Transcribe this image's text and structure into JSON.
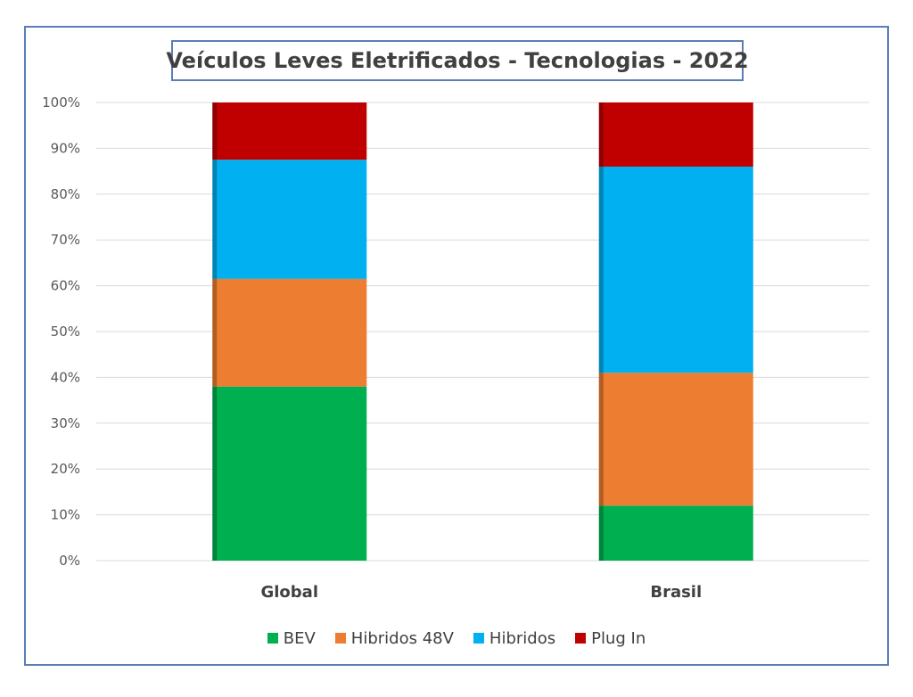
{
  "chart_data": {
    "type": "bar",
    "stacked": true,
    "normalized_percent": true,
    "title": "Veículos Leves Eletrificados - Tecnologias - 2022",
    "categories": [
      "Global",
      "Brasil"
    ],
    "series": [
      {
        "name": "BEV",
        "values": [
          38,
          12
        ],
        "color": "#00b050"
      },
      {
        "name": "Hibridos 48V",
        "values": [
          23.5,
          29
        ],
        "color": "#ed7d31"
      },
      {
        "name": "Hibridos",
        "values": [
          26,
          45
        ],
        "color": "#00b0f0"
      },
      {
        "name": "Plug In",
        "values": [
          12.5,
          14
        ],
        "color": "#c00000"
      }
    ],
    "ylim": [
      0,
      100
    ],
    "yticks": [
      "0%",
      "10%",
      "20%",
      "30%",
      "40%",
      "50%",
      "60%",
      "70%",
      "80%",
      "90%",
      "100%"
    ],
    "grid": true,
    "legend_position": "bottom"
  }
}
